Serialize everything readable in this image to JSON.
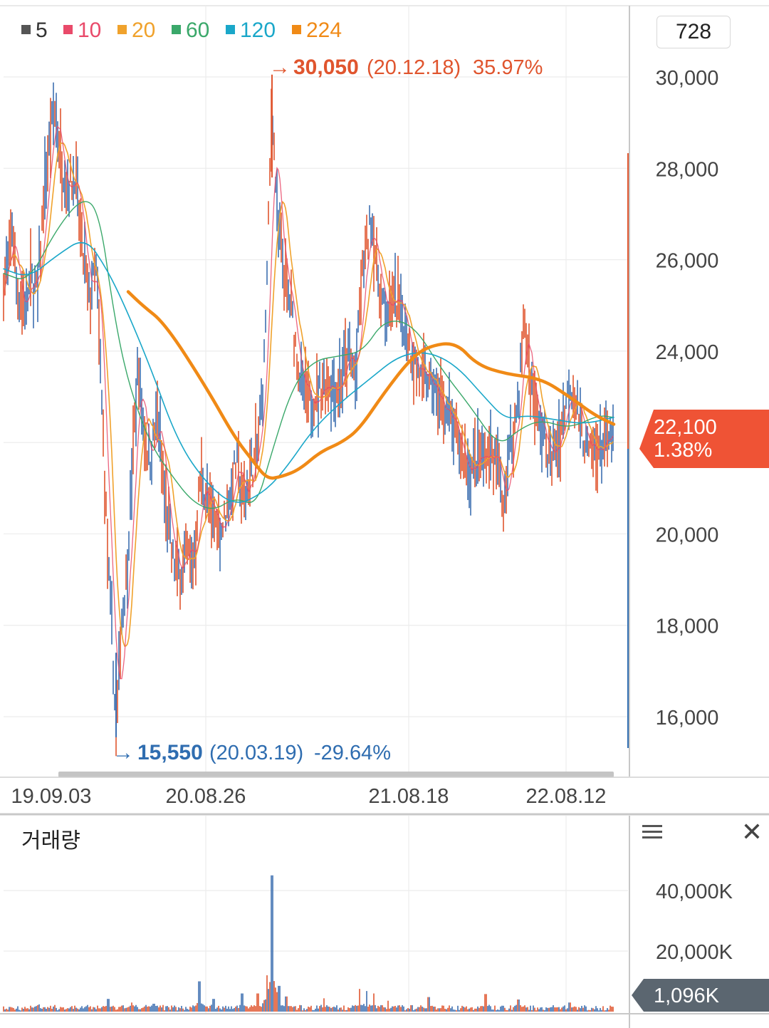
{
  "legend": [
    {
      "label": "5",
      "color": "#555555"
    },
    {
      "label": "10",
      "color": "#e94a6a"
    },
    {
      "label": "20",
      "color": "#f0a22c"
    },
    {
      "label": "60",
      "color": "#3aa86a"
    },
    {
      "label": "120",
      "color": "#1aa7c9"
    },
    {
      "label": "224",
      "color": "#f08a16"
    }
  ],
  "zoom_value": "728",
  "high_marker": {
    "arrow": "→",
    "price": "30,050",
    "date": "(20.12.18)",
    "pct": "35.97%",
    "color": "#e0552e"
  },
  "low_marker": {
    "arrow": "→",
    "price": "15,550",
    "date": "(20.03.19)",
    "pct": "-29.64%",
    "color": "#2f6db0"
  },
  "current": {
    "price": "22,100",
    "pct": "1.38%",
    "color": "#ef5335"
  },
  "volume_label": "거래량",
  "volume_current": "1,096K",
  "chart_data": {
    "type": "line",
    "price_axis": {
      "ticks": [
        30000,
        28000,
        26000,
        24000,
        22000,
        20000,
        18000,
        16000
      ],
      "labels": [
        "30,000",
        "28,000",
        "26,000",
        "24,000",
        "",
        "20,000",
        "18,000",
        "16,000"
      ],
      "range": [
        15000,
        31500
      ]
    },
    "x_ticks": [
      "19.09.03",
      "20.08.26",
      "21.08.18",
      "22.08.12"
    ],
    "volume_axis": {
      "ticks": [
        40000,
        20000
      ],
      "labels": [
        "40,000K",
        "20,000K"
      ]
    },
    "close_anchors": [
      [
        0,
        25200
      ],
      [
        10,
        25800
      ],
      [
        18,
        26800
      ],
      [
        24,
        25300
      ],
      [
        34,
        25000
      ],
      [
        44,
        25600
      ],
      [
        52,
        25200
      ],
      [
        60,
        27000
      ],
      [
        70,
        28600
      ],
      [
        78,
        29300
      ],
      [
        85,
        28200
      ],
      [
        95,
        27600
      ],
      [
        105,
        27900
      ],
      [
        115,
        26300
      ],
      [
        125,
        25100
      ],
      [
        135,
        25800
      ],
      [
        145,
        22000
      ],
      [
        152,
        19200
      ],
      [
        158,
        17500
      ],
      [
        163,
        15550
      ],
      [
        170,
        18000
      ],
      [
        178,
        19200
      ],
      [
        186,
        21500
      ],
      [
        194,
        23800
      ],
      [
        200,
        22500
      ],
      [
        210,
        21600
      ],
      [
        222,
        22600
      ],
      [
        232,
        20600
      ],
      [
        242,
        19500
      ],
      [
        252,
        19100
      ],
      [
        262,
        19600
      ],
      [
        272,
        19400
      ],
      [
        282,
        21300
      ],
      [
        292,
        20600
      ],
      [
        302,
        20300
      ],
      [
        312,
        20100
      ],
      [
        322,
        20800
      ],
      [
        332,
        21600
      ],
      [
        342,
        20700
      ],
      [
        352,
        21300
      ],
      [
        362,
        21900
      ],
      [
        370,
        23300
      ],
      [
        376,
        26100
      ],
      [
        382,
        29500
      ],
      [
        390,
        26700
      ],
      [
        400,
        25500
      ],
      [
        410,
        24800
      ],
      [
        420,
        23500
      ],
      [
        432,
        22800
      ],
      [
        446,
        23100
      ],
      [
        460,
        23400
      ],
      [
        474,
        23200
      ],
      [
        488,
        23900
      ],
      [
        500,
        23500
      ],
      [
        508,
        25600
      ],
      [
        516,
        26400
      ],
      [
        522,
        26900
      ],
      [
        530,
        25700
      ],
      [
        540,
        24800
      ],
      [
        552,
        25100
      ],
      [
        564,
        24900
      ],
      [
        576,
        24100
      ],
      [
        590,
        23400
      ],
      [
        604,
        23300
      ],
      [
        616,
        22900
      ],
      [
        630,
        22600
      ],
      [
        644,
        21900
      ],
      [
        658,
        21400
      ],
      [
        672,
        21600
      ],
      [
        686,
        21800
      ],
      [
        700,
        21500
      ],
      [
        706,
        20500
      ],
      [
        716,
        21800
      ],
      [
        728,
        22900
      ],
      [
        736,
        24800
      ],
      [
        744,
        23500
      ],
      [
        754,
        22500
      ],
      [
        764,
        22100
      ],
      [
        774,
        21600
      ],
      [
        786,
        22200
      ],
      [
        800,
        23300
      ],
      [
        812,
        22700
      ],
      [
        826,
        21700
      ],
      [
        840,
        21900
      ],
      [
        852,
        22000
      ],
      [
        862,
        22100
      ]
    ],
    "ma_series": [
      {
        "name": "224",
        "color": "#f08a16",
        "width": 4.5,
        "points": [
          [
            180,
            25300
          ],
          [
            200,
            25000
          ],
          [
            232,
            24600
          ],
          [
            290,
            23200
          ],
          [
            330,
            22100
          ],
          [
            355,
            21600
          ],
          [
            375,
            21200
          ],
          [
            395,
            21250
          ],
          [
            420,
            21400
          ],
          [
            450,
            21800
          ],
          [
            480,
            22000
          ],
          [
            505,
            22300
          ],
          [
            540,
            23100
          ],
          [
            575,
            23800
          ],
          [
            600,
            24100
          ],
          [
            640,
            24200
          ],
          [
            670,
            23700
          ],
          [
            710,
            23500
          ],
          [
            760,
            23400
          ],
          [
            800,
            23000
          ],
          [
            835,
            22600
          ],
          [
            862,
            22400
          ]
        ]
      },
      {
        "name": "120",
        "color": "#1aa7c9",
        "width": 1.6,
        "points": [
          [
            5,
            25800
          ],
          [
            40,
            25600
          ],
          [
            80,
            26100
          ],
          [
            120,
            26500
          ],
          [
            150,
            25800
          ],
          [
            175,
            25000
          ],
          [
            210,
            23700
          ],
          [
            250,
            22000
          ],
          [
            290,
            21100
          ],
          [
            330,
            20600
          ],
          [
            370,
            20900
          ],
          [
            400,
            21400
          ],
          [
            440,
            22300
          ],
          [
            480,
            22900
          ],
          [
            520,
            23400
          ],
          [
            560,
            23900
          ],
          [
            600,
            24000
          ],
          [
            640,
            23700
          ],
          [
            680,
            23000
          ],
          [
            710,
            22500
          ],
          [
            740,
            22600
          ],
          [
            780,
            22500
          ],
          [
            820,
            22400
          ],
          [
            862,
            22550
          ]
        ]
      },
      {
        "name": "60",
        "color": "#3aa86a",
        "width": 1.4,
        "points": [
          [
            5,
            25700
          ],
          [
            40,
            25500
          ],
          [
            80,
            26700
          ],
          [
            118,
            27400
          ],
          [
            140,
            27000
          ],
          [
            160,
            24800
          ],
          [
            180,
            23300
          ],
          [
            210,
            22000
          ],
          [
            240,
            21300
          ],
          [
            270,
            20700
          ],
          [
            300,
            20500
          ],
          [
            330,
            20800
          ],
          [
            360,
            20600
          ],
          [
            380,
            21700
          ],
          [
            410,
            23200
          ],
          [
            440,
            23800
          ],
          [
            480,
            23900
          ],
          [
            510,
            24000
          ],
          [
            540,
            24700
          ],
          [
            580,
            24600
          ],
          [
            620,
            23600
          ],
          [
            660,
            22800
          ],
          [
            700,
            21900
          ],
          [
            730,
            22300
          ],
          [
            760,
            22500
          ],
          [
            800,
            22300
          ],
          [
            840,
            22600
          ],
          [
            862,
            22550
          ]
        ]
      }
    ],
    "volume_spikes": [
      [
        55,
        2400
      ],
      [
        152,
        4200
      ],
      [
        185,
        3000
      ],
      [
        216,
        2600
      ],
      [
        280,
        10000
      ],
      [
        300,
        4200
      ],
      [
        340,
        6000
      ],
      [
        362,
        6000
      ],
      [
        375,
        12000
      ],
      [
        382,
        45000
      ],
      [
        392,
        8500
      ],
      [
        402,
        5000
      ],
      [
        455,
        4400
      ],
      [
        505,
        7500
      ],
      [
        515,
        6800
      ],
      [
        525,
        6000
      ],
      [
        545,
        3600
      ],
      [
        602,
        4800
      ],
      [
        682,
        5800
      ],
      [
        728,
        4000
      ],
      [
        800,
        3000
      ]
    ]
  }
}
